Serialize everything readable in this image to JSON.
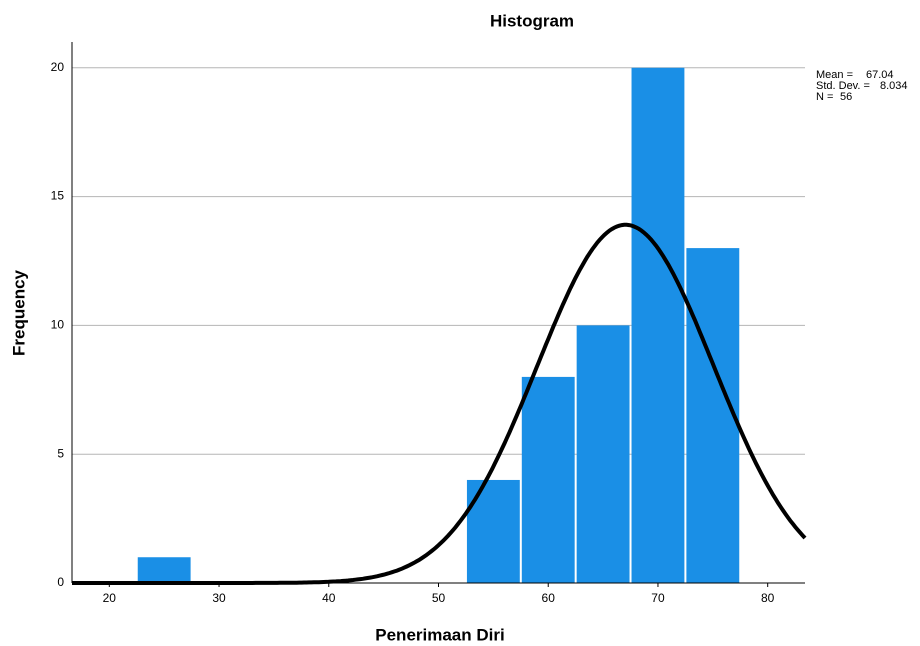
{
  "chart_data": {
    "type": "histogram",
    "title": "Histogram",
    "x_label": "Penerimaan Diri",
    "y_label": "Frequency",
    "bins": [
      22.5,
      27.5,
      32.5,
      37.5,
      42.5,
      47.5,
      52.5,
      57.5,
      62.5,
      67.5,
      72.5,
      77.5
    ],
    "counts": [
      1,
      0,
      0,
      0,
      0,
      0,
      4,
      8,
      10,
      20,
      13
    ],
    "color": "#1a8fe6",
    "xlim": [
      16.6,
      83.4
    ],
    "xticks": [
      20,
      30,
      40,
      50,
      60,
      70,
      80
    ],
    "ylim": [
      0,
      21
    ],
    "yticks": [
      0,
      5,
      10,
      15,
      20
    ],
    "grid": true,
    "stats": [
      {
        "label": "Mean =",
        "value": 67.04
      },
      {
        "label": "Std. Dev. =",
        "value": 8.034
      },
      {
        "label": "N =",
        "value": 56
      }
    ],
    "normal_curve": true
  }
}
